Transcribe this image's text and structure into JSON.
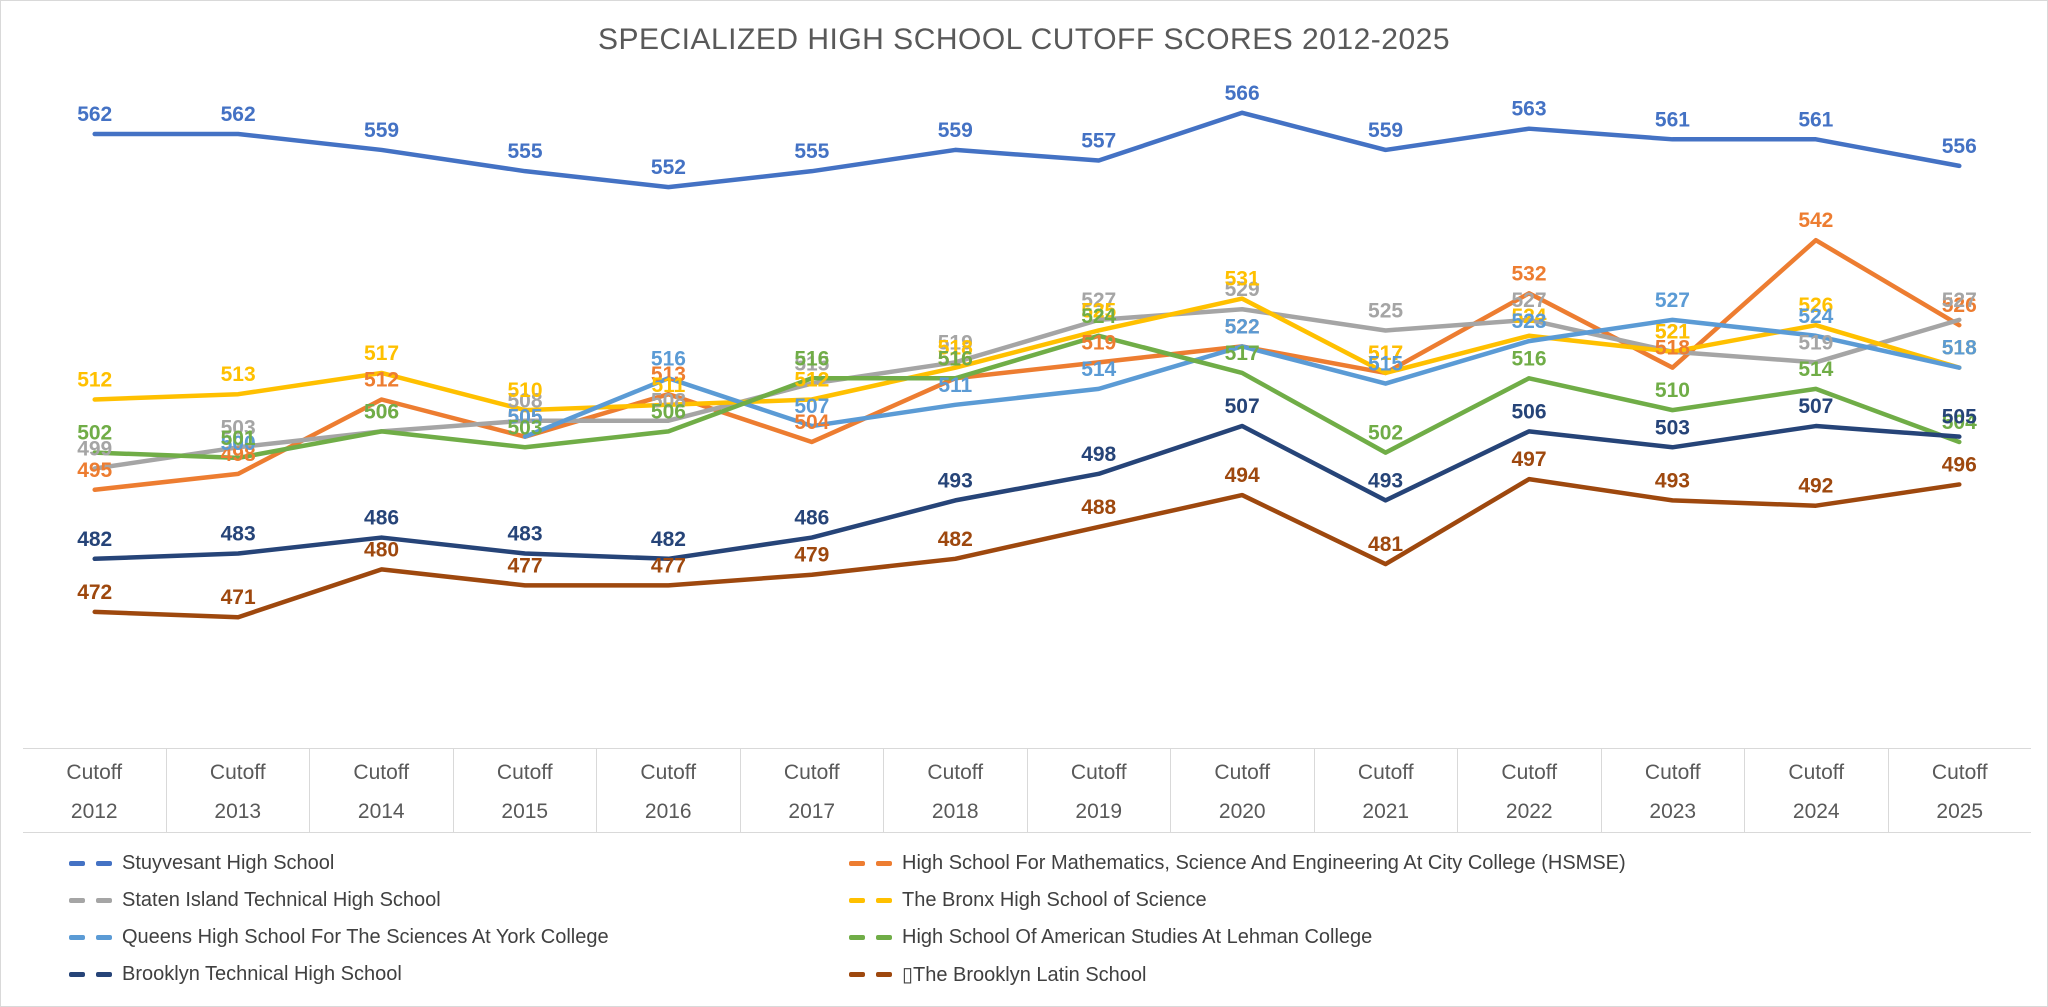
{
  "title": "SPECIALIZED HIGH SCHOOL CUTOFF SCORES 2012-2025",
  "chart_data": {
    "type": "line",
    "categories": [
      "2012",
      "2013",
      "2014",
      "2015",
      "2016",
      "2017",
      "2018",
      "2019",
      "2020",
      "2021",
      "2022",
      "2023",
      "2024",
      "2025"
    ],
    "x_axis_row_label": "Cutoff",
    "ylim": [
      465,
      572
    ],
    "grid": false,
    "legend_position": "bottom, two columns",
    "data_labels": "above points, bold, colored per series",
    "series": [
      {
        "name": "Stuyvesant High School",
        "color": "#4472C4",
        "values": [
          562,
          562,
          559,
          555,
          552,
          555,
          559,
          557,
          566,
          559,
          563,
          561,
          561,
          556
        ]
      },
      {
        "name": "High School For Mathematics, Science And Engineering At City College (HSMSE)",
        "color": "#ED7D31",
        "values": [
          495,
          498,
          512,
          505,
          513,
          504,
          516,
          519,
          522,
          517,
          532,
          518,
          542,
          526
        ]
      },
      {
        "name": "Staten Island Technical High School",
        "color": "#A5A5A5",
        "values": [
          499,
          503,
          506,
          508,
          508,
          515,
          519,
          527,
          529,
          525,
          527,
          521,
          519,
          527
        ]
      },
      {
        "name": "The Bronx High School of Science",
        "color": "#FFC000",
        "values": [
          512,
          513,
          517,
          510,
          511,
          512,
          518,
          525,
          531,
          517,
          524,
          521,
          526,
          518
        ]
      },
      {
        "name": "Queens High School For The Sciences At York College",
        "color": "#5B9BD5",
        "values": [
          null,
          500,
          null,
          505,
          516,
          507,
          511,
          514,
          522,
          515,
          523,
          527,
          524,
          518
        ]
      },
      {
        "name": "High School Of American Studies At Lehman College",
        "color": "#70AD47",
        "values": [
          502,
          501,
          506,
          503,
          506,
          516,
          516,
          524,
          517,
          502,
          516,
          510,
          514,
          504
        ]
      },
      {
        "name": "Brooklyn Technical High School",
        "color": "#264478",
        "values": [
          482,
          483,
          486,
          483,
          482,
          486,
          493,
          498,
          507,
          493,
          506,
          503,
          507,
          505
        ]
      },
      {
        "name": "▯The Brooklyn Latin School",
        "color": "#9E480E",
        "values": [
          472,
          471,
          480,
          477,
          477,
          479,
          482,
          488,
          494,
          481,
          497,
          493,
          492,
          496
        ]
      }
    ]
  }
}
